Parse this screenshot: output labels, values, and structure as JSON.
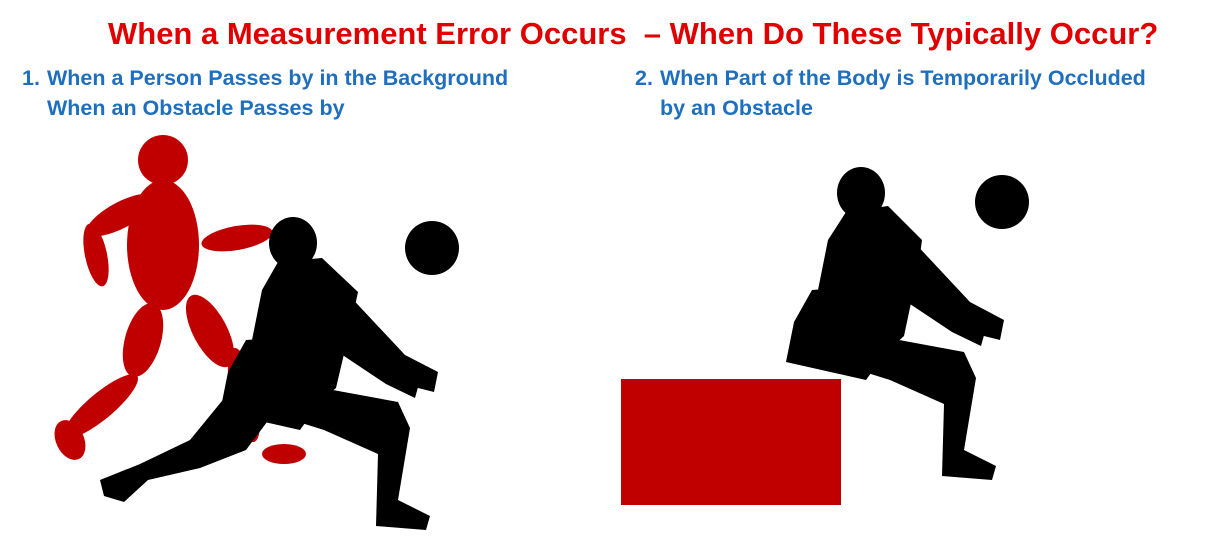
{
  "slide": {
    "title": "When a Measurement Error Occurs  – When Do These Typically Occur?",
    "cases": [
      {
        "number": "1.",
        "line1": "When a Person Passes by in the Background",
        "line2": "When an Obstacle Passes by"
      },
      {
        "number": "2.",
        "line1": "When Part of the Body is Temporarily Occluded",
        "line2": "by an Obstacle"
      }
    ]
  },
  "colors": {
    "title": "#e00000",
    "heading": "#1f6fbf",
    "red_figure": "#c00000",
    "obstacle": "#c00000",
    "silhouette": "#000000"
  },
  "icons": [
    "red-ellipse-person-icon",
    "volleyball-player-silhouette-icon",
    "volleyball-icon",
    "red-rectangle-obstacle-icon"
  ]
}
